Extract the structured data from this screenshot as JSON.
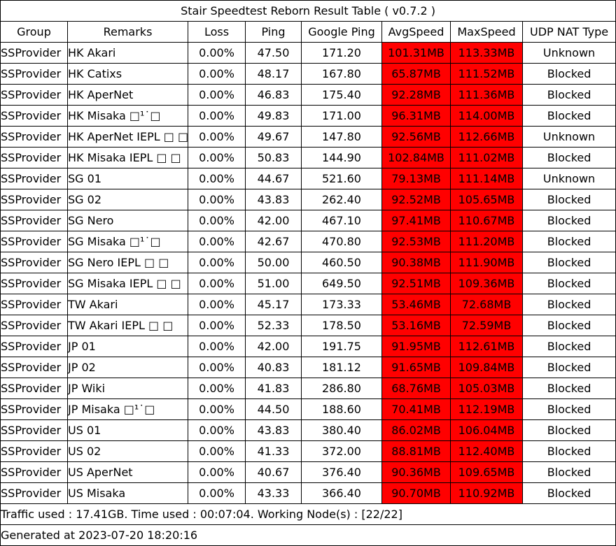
{
  "title": "Stair Speedtest Reborn Result Table ( v0.7.2 )",
  "columns": [
    "Group",
    "Remarks",
    "Loss",
    "Ping",
    "Google Ping",
    "AvgSpeed",
    "MaxSpeed",
    "UDP NAT Type"
  ],
  "speed_highlight_color": "#ff0000",
  "rows": [
    {
      "group": "SSProvider",
      "remark": "HK Akari",
      "loss": "0.00%",
      "ping": "47.50",
      "gping": "171.20",
      "avg": "101.31MB",
      "max": "113.33MB",
      "nat": "Unknown"
    },
    {
      "group": "SSProvider",
      "remark": "HK Catixs",
      "loss": "0.00%",
      "ping": "48.17",
      "gping": "167.80",
      "avg": "65.87MB",
      "max": "111.52MB",
      "nat": "Blocked"
    },
    {
      "group": "SSProvider",
      "remark": "HK AperNet",
      "loss": "0.00%",
      "ping": "46.83",
      "gping": "175.40",
      "avg": "92.28MB",
      "max": "111.36MB",
      "nat": "Blocked"
    },
    {
      "group": "SSProvider",
      "remark": "HK Misaka □¹˙□",
      "loss": "0.00%",
      "ping": "49.83",
      "gping": "171.00",
      "avg": "96.31MB",
      "max": "114.00MB",
      "nat": "Blocked"
    },
    {
      "group": "SSProvider",
      "remark": "HK AperNet IEPL □ □",
      "loss": "0.00%",
      "ping": "49.67",
      "gping": "147.80",
      "avg": "92.56MB",
      "max": "112.66MB",
      "nat": "Unknown"
    },
    {
      "group": "SSProvider",
      "remark": "HK Misaka IEPL □ □",
      "loss": "0.00%",
      "ping": "50.83",
      "gping": "144.90",
      "avg": "102.84MB",
      "max": "111.02MB",
      "nat": "Blocked"
    },
    {
      "group": "SSProvider",
      "remark": "SG 01",
      "loss": "0.00%",
      "ping": "44.67",
      "gping": "521.60",
      "avg": "79.13MB",
      "max": "111.14MB",
      "nat": "Unknown"
    },
    {
      "group": "SSProvider",
      "remark": "SG 02",
      "loss": "0.00%",
      "ping": "43.83",
      "gping": "262.40",
      "avg": "92.52MB",
      "max": "105.65MB",
      "nat": "Blocked"
    },
    {
      "group": "SSProvider",
      "remark": "SG Nero",
      "loss": "0.00%",
      "ping": "42.00",
      "gping": "467.10",
      "avg": "97.41MB",
      "max": "110.67MB",
      "nat": "Blocked"
    },
    {
      "group": "SSProvider",
      "remark": "SG Misaka □¹˙□",
      "loss": "0.00%",
      "ping": "42.67",
      "gping": "470.80",
      "avg": "92.53MB",
      "max": "111.20MB",
      "nat": "Blocked"
    },
    {
      "group": "SSProvider",
      "remark": "SG Nero IEPL □ □",
      "loss": "0.00%",
      "ping": "50.00",
      "gping": "460.50",
      "avg": "90.38MB",
      "max": "111.90MB",
      "nat": "Blocked"
    },
    {
      "group": "SSProvider",
      "remark": "SG Misaka IEPL □ □",
      "loss": "0.00%",
      "ping": "51.00",
      "gping": "649.50",
      "avg": "92.51MB",
      "max": "109.36MB",
      "nat": "Blocked"
    },
    {
      "group": "SSProvider",
      "remark": "TW Akari",
      "loss": "0.00%",
      "ping": "45.17",
      "gping": "173.33",
      "avg": "53.46MB",
      "max": "72.68MB",
      "nat": "Blocked"
    },
    {
      "group": "SSProvider",
      "remark": "TW Akari IEPL □ □",
      "loss": "0.00%",
      "ping": "52.33",
      "gping": "178.50",
      "avg": "53.16MB",
      "max": "72.59MB",
      "nat": "Blocked"
    },
    {
      "group": "SSProvider",
      "remark": "JP 01",
      "loss": "0.00%",
      "ping": "42.00",
      "gping": "191.75",
      "avg": "91.95MB",
      "max": "112.61MB",
      "nat": "Blocked"
    },
    {
      "group": "SSProvider",
      "remark": "JP 02",
      "loss": "0.00%",
      "ping": "40.83",
      "gping": "181.12",
      "avg": "91.65MB",
      "max": "109.84MB",
      "nat": "Blocked"
    },
    {
      "group": "SSProvider",
      "remark": "JP Wiki",
      "loss": "0.00%",
      "ping": "41.83",
      "gping": "286.80",
      "avg": "68.76MB",
      "max": "105.03MB",
      "nat": "Blocked"
    },
    {
      "group": "SSProvider",
      "remark": "JP Misaka □¹˙□",
      "loss": "0.00%",
      "ping": "44.50",
      "gping": "188.60",
      "avg": "70.41MB",
      "max": "112.19MB",
      "nat": "Blocked"
    },
    {
      "group": "SSProvider",
      "remark": "US 01",
      "loss": "0.00%",
      "ping": "43.83",
      "gping": "380.40",
      "avg": "86.02MB",
      "max": "106.04MB",
      "nat": "Blocked"
    },
    {
      "group": "SSProvider",
      "remark": "US 02",
      "loss": "0.00%",
      "ping": "41.33",
      "gping": "372.00",
      "avg": "88.81MB",
      "max": "112.40MB",
      "nat": "Blocked"
    },
    {
      "group": "SSProvider",
      "remark": "US AperNet",
      "loss": "0.00%",
      "ping": "40.67",
      "gping": "376.40",
      "avg": "90.36MB",
      "max": "109.65MB",
      "nat": "Blocked"
    },
    {
      "group": "SSProvider",
      "remark": "US Misaka",
      "loss": "0.00%",
      "ping": "43.33",
      "gping": "366.40",
      "avg": "90.70MB",
      "max": "110.92MB",
      "nat": "Blocked"
    }
  ],
  "footer": {
    "traffic": "Traffic used : 17.41GB. Time used : 00:07:04. Working Node(s) : [22/22]",
    "generated": "Generated at 2023-07-20 18:20:16"
  }
}
